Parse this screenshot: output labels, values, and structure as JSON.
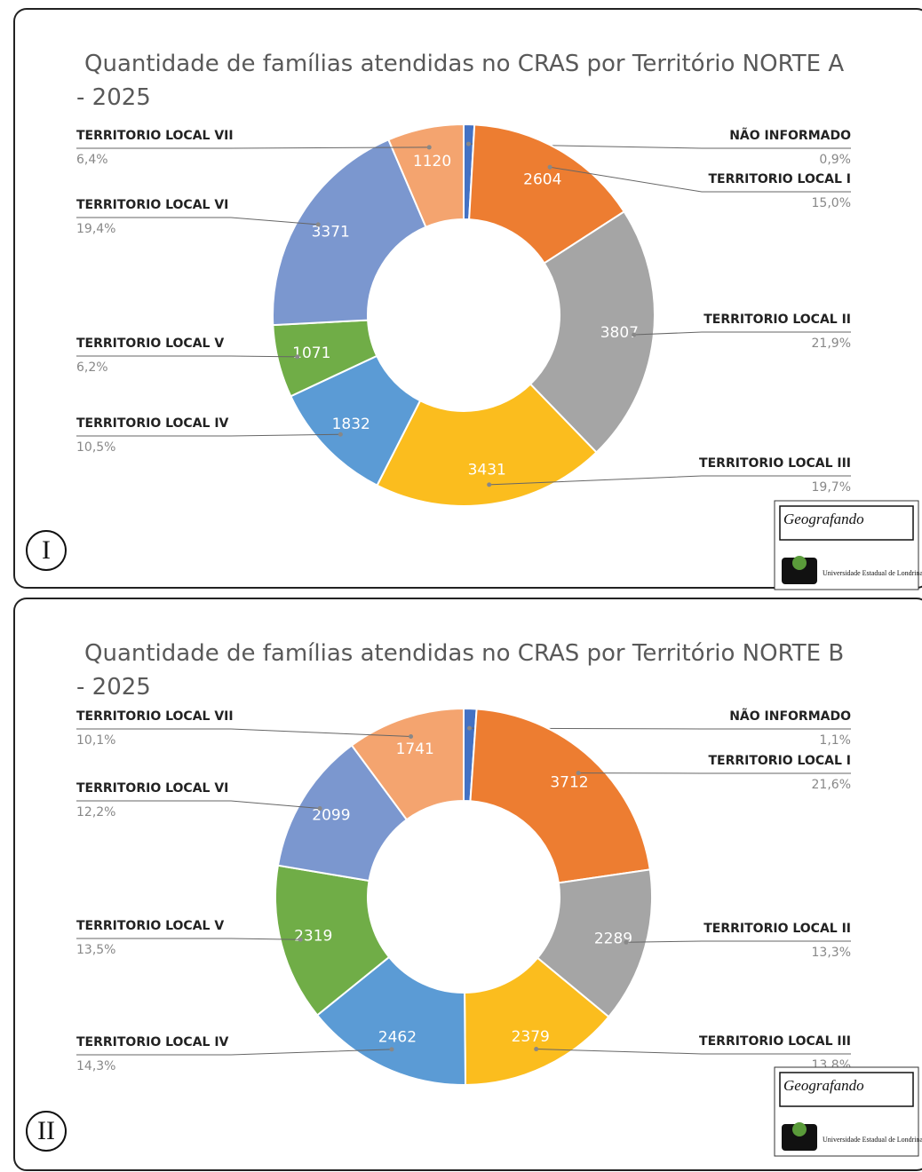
{
  "chart_data": [
    {
      "type": "donut",
      "title": "Quantidade de famílias atendidas no CRAS por Território NORTE A - 2025",
      "categories": [
        "NÃO INFORMADO",
        "TERRITORIO LOCAL I",
        "TERRITORIO LOCAL II",
        "TERRITORIO LOCAL III",
        "TERRITORIO LOCAL IV",
        "TERRITORIO LOCAL V",
        "TERRITORIO LOCAL VI",
        "TERRITORIO LOCAL VII"
      ],
      "values": [
        157,
        2604,
        3807,
        3431,
        1832,
        1071,
        3371,
        1120
      ],
      "percent_labels": [
        "0,9%",
        "15,0%",
        "21,9%",
        "19,7%",
        "10,5%",
        "6,2%",
        "19,4%",
        "6,4%"
      ],
      "colors": [
        "#4472c4",
        "#ed7d31",
        "#a5a5a5",
        "#fbbd1e",
        "#5b9bd5",
        "#70ad47",
        "#7b97cf",
        "#f4a46f"
      ],
      "panel_label": "I",
      "logo_text": "Geografando",
      "university": "Universidade Estadual de Londrina"
    },
    {
      "type": "donut",
      "title": "Quantidade de famílias atendidas no CRAS por Território NORTE B - 2025",
      "categories": [
        "NÃO INFORMADO",
        "TERRITORIO LOCAL I",
        "TERRITORIO LOCAL II",
        "TERRITORIO LOCAL III",
        "TERRITORIO LOCAL IV",
        "TERRITORIO LOCAL V",
        "TERRITORIO LOCAL VI",
        "TERRITORIO LOCAL VII"
      ],
      "values": [
        189,
        3712,
        2289,
        2379,
        2462,
        2319,
        2099,
        1741
      ],
      "percent_labels": [
        "1,1%",
        "21,6%",
        "13,3%",
        "13,8%",
        "14,3%",
        "13,5%",
        "12,2%",
        "10,1%"
      ],
      "colors": [
        "#4472c4",
        "#ed7d31",
        "#a5a5a5",
        "#fbbd1e",
        "#5b9bd5",
        "#70ad47",
        "#7b97cf",
        "#f4a46f"
      ],
      "panel_label": "II",
      "logo_text": "Geografando",
      "university": "Universidade Estadual de Londrina"
    }
  ]
}
